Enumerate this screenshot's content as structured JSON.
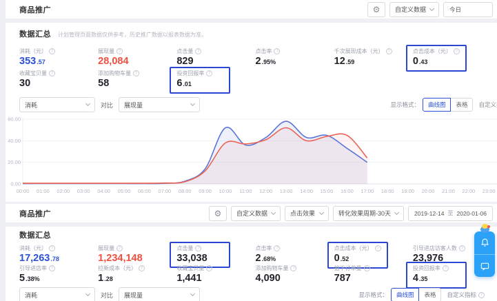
{
  "icons": {
    "gear": "⚙",
    "help": "?",
    "chevron_down": "css-chevron-shape",
    "bell": "svg-bell-shape",
    "chat": "svg-chat-shape",
    "mascot": "css-mascot-blob"
  },
  "colors": {
    "value_blue": "#2b50d9",
    "value_red": "#ee4f3e",
    "highlight_box": "#2946d5",
    "line_blue": "#5b76d8",
    "line_red": "#ec6355",
    "widget_blue": "#2ba2f8"
  },
  "top": {
    "page_title": "商品推广",
    "toolbar": {
      "data_dropdown": "自定义数据",
      "date_value": "今日"
    },
    "summary": {
      "title": "数据汇总",
      "note": "计划管理页面数据仅供参考，历史推广数据以报表数据为准。"
    },
    "metrics": [
      {
        "label": "消耗（元）",
        "value": "353",
        "dec": ".57",
        "color": "blue",
        "boxed": false
      },
      {
        "label": "展现量",
        "value": "28,084",
        "dec": "",
        "color": "red",
        "boxed": false
      },
      {
        "label": "点击量",
        "value": "829",
        "dec": "",
        "color": "dark",
        "boxed": false
      },
      {
        "label": "点击率",
        "value": "2",
        "dec": ".95%",
        "color": "dark",
        "boxed": false
      },
      {
        "label": "千次展现成本（元）",
        "value": "12",
        "dec": ".59",
        "color": "dark",
        "boxed": false
      },
      {
        "label": "点击成本（元）",
        "value": "0",
        "dec": ".43",
        "color": "dark",
        "boxed": true
      },
      {
        "label": "收藏宝贝量",
        "value": "30",
        "dec": "",
        "color": "dark",
        "boxed": false
      },
      {
        "label": "添加购物车量",
        "value": "58",
        "dec": "",
        "color": "dark",
        "boxed": false
      },
      {
        "label": "投资回报率",
        "value": "6",
        "dec": ".01",
        "color": "dark",
        "boxed": true
      }
    ],
    "compare": {
      "left_select": "消耗",
      "vs": "对比",
      "right_select": "展现量"
    },
    "display": {
      "label": "显示格式：",
      "options": [
        "曲线图",
        "表格"
      ],
      "active": 0,
      "extra": "自定义指标"
    }
  },
  "chart_data": {
    "type": "line",
    "title": "",
    "xlabel": "",
    "ylabel": "",
    "ylim": [
      0,
      60
    ],
    "yticks": [
      "0.00",
      "20.00",
      "40.00",
      "60.00"
    ],
    "grid": "horizontal",
    "legend": "none",
    "x": [
      "00:00",
      "01:00",
      "02:00",
      "03:00",
      "04:00",
      "05:00",
      "06:00",
      "07:00",
      "08:00",
      "09:00",
      "10:00",
      "11:00",
      "12:00",
      "13:00",
      "14:00",
      "15:00",
      "16:00",
      "17:00",
      "18:00",
      "19:00",
      "20:00",
      "21:00",
      "22:00",
      "23:00"
    ],
    "series": [
      {
        "name": "消耗",
        "color": "#5b76d8",
        "fill": "rgba(90,115,216,0.10)",
        "values": [
          0.3,
          0.3,
          0.3,
          0.3,
          0.3,
          0.3,
          0.3,
          0.5,
          2.5,
          14,
          52,
          36,
          43,
          58,
          43,
          45,
          33,
          20
        ]
      },
      {
        "name": "展现量",
        "color": "#ec6355",
        "fill": "rgba(236,99,85,0.08)",
        "values": [
          0.6,
          0.6,
          0.6,
          0.6,
          0.6,
          0.6,
          0.6,
          0.8,
          2,
          12,
          38,
          37,
          41,
          52,
          40,
          44,
          45,
          24
        ]
      }
    ],
    "note": "data ends at 17:00; hours after have no values"
  },
  "bottom": {
    "page_title": "商品推广",
    "toolbar": {
      "data_dropdown": "自定义数据",
      "effect_dropdown": "点击效果",
      "period_dropdown": "转化效果周期-30天",
      "date_start": "2019-12-14",
      "date_sep": "至",
      "date_end": "2020-01-06"
    },
    "summary": {
      "title": "数据汇总"
    },
    "metrics": [
      {
        "label": "消耗（元）",
        "value": "17,263",
        "dec": ".78",
        "color": "blue",
        "boxed": false
      },
      {
        "label": "展现量",
        "value": "1,234,148",
        "dec": "",
        "color": "red",
        "boxed": false
      },
      {
        "label": "点击量",
        "value": "33,038",
        "dec": "",
        "color": "dark",
        "boxed": true
      },
      {
        "label": "点击率",
        "value": "2",
        "dec": ".68%",
        "color": "dark",
        "boxed": false
      },
      {
        "label": "点击成本（元）",
        "value": "0",
        "dec": ".52",
        "color": "dark",
        "boxed": true
      },
      {
        "label": "引导进店访客人数",
        "value": "23,976",
        "dec": "",
        "color": "dark",
        "boxed": false
      },
      {
        "label": "引导进店率",
        "value": "5",
        "dec": ".38%",
        "color": "dark",
        "boxed": false
      },
      {
        "label": "拉新成本（元）",
        "value": "1",
        "dec": ".28",
        "color": "dark",
        "boxed": false
      },
      {
        "label": "收藏宝贝量",
        "value": "1,441",
        "dec": "",
        "color": "dark",
        "boxed": false
      },
      {
        "label": "添加购物车量",
        "value": "4,090",
        "dec": "",
        "color": "dark",
        "boxed": false
      },
      {
        "label": "拍下订单量",
        "value": "787",
        "dec": "",
        "color": "dark",
        "boxed": false
      },
      {
        "label": "投资回报率",
        "value": "4",
        "dec": ".35",
        "color": "dark",
        "boxed": true
      }
    ],
    "compare": {
      "left_select": "消耗",
      "vs": "对比",
      "right_select": "展现量"
    },
    "display": {
      "label": "显示格式：",
      "options": [
        "曲线图",
        "表格"
      ],
      "active": 0,
      "extra": "自定义指标"
    }
  }
}
